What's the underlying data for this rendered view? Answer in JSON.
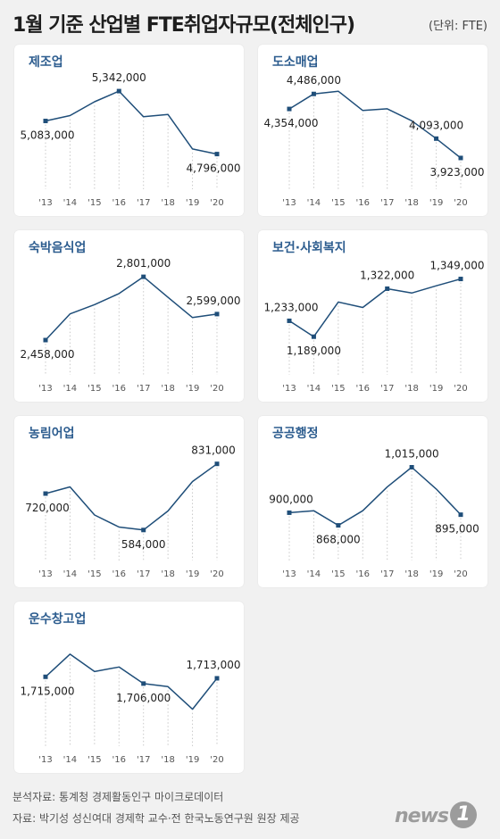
{
  "header": {
    "title": "1월 기준 산업별 FTE취업자규모(전체인구)",
    "unit": "(단위: FTE)"
  },
  "colors": {
    "line": "#1f4e79",
    "panel_title": "#2d5d8f"
  },
  "chart_data": [
    {
      "type": "line",
      "title": "제조업",
      "x": [
        "'13",
        "'14",
        "'15",
        "'16",
        "'17",
        "'18",
        "'19",
        "'20"
      ],
      "values": [
        5083000,
        5130000,
        5250000,
        5342000,
        5120000,
        5140000,
        4840000,
        4796000
      ],
      "ylim": [
        4700000,
        5420000
      ],
      "labels": [
        {
          "i": 0,
          "text": "5,083,000",
          "pos": "below"
        },
        {
          "i": 3,
          "text": "5,342,000",
          "pos": "above"
        },
        {
          "i": 7,
          "text": "4,796,000",
          "pos": "below"
        }
      ]
    },
    {
      "type": "line",
      "title": "도소매업",
      "x": [
        "'13",
        "'14",
        "'15",
        "'16",
        "'17",
        "'18",
        "'19",
        "'20"
      ],
      "values": [
        4354000,
        4486000,
        4510000,
        4340000,
        4355000,
        4250000,
        4093000,
        3923000
      ],
      "ylim": [
        3860000,
        4590000
      ],
      "labels": [
        {
          "i": 0,
          "text": "4,354,000",
          "pos": "below"
        },
        {
          "i": 1,
          "text": "4,486,000",
          "pos": "above"
        },
        {
          "i": 6,
          "text": "4,093,000",
          "pos": "above"
        },
        {
          "i": 7,
          "text": "3,923,000",
          "pos": "below"
        }
      ]
    },
    {
      "type": "line",
      "title": "숙박음식업",
      "x": [
        "'13",
        "'14",
        "'15",
        "'16",
        "'17",
        "'18",
        "'19",
        "'20"
      ],
      "values": [
        2458000,
        2600000,
        2650000,
        2710000,
        2801000,
        2690000,
        2580000,
        2599000
      ],
      "ylim": [
        2400000,
        2850000
      ],
      "labels": [
        {
          "i": 0,
          "text": "2,458,000",
          "pos": "below"
        },
        {
          "i": 4,
          "text": "2,801,000",
          "pos": "above"
        },
        {
          "i": 7,
          "text": "2,599,000",
          "pos": "above"
        }
      ]
    },
    {
      "type": "line",
      "title": "보건·사회복지",
      "x": [
        "'13",
        "'14",
        "'15",
        "'16",
        "'17",
        "'18",
        "'19",
        "'20"
      ],
      "values": [
        1233000,
        1189000,
        1285000,
        1270000,
        1322000,
        1310000,
        1330000,
        1349000
      ],
      "ylim": [
        1150000,
        1380000
      ],
      "labels": [
        {
          "i": 0,
          "text": "1,233,000",
          "pos": "above"
        },
        {
          "i": 1,
          "text": "1,189,000",
          "pos": "below"
        },
        {
          "i": 4,
          "text": "1,322,000",
          "pos": "above"
        },
        {
          "i": 7,
          "text": "1,349,000",
          "pos": "above"
        }
      ]
    },
    {
      "type": "line",
      "title": "농림어업",
      "x": [
        "'13",
        "'14",
        "'15",
        "'16",
        "'17",
        "'18",
        "'19",
        "'20"
      ],
      "values": [
        720000,
        745000,
        640000,
        595000,
        584000,
        655000,
        765000,
        831000
      ],
      "ylim": [
        560000,
        870000
      ],
      "labels": [
        {
          "i": 0,
          "text": "720,000",
          "pos": "below"
        },
        {
          "i": 4,
          "text": "584,000",
          "pos": "below"
        },
        {
          "i": 7,
          "text": "831,000",
          "pos": "above"
        }
      ]
    },
    {
      "type": "line",
      "title": "공공행정",
      "x": [
        "'13",
        "'14",
        "'15",
        "'16",
        "'17",
        "'18",
        "'19",
        "'20"
      ],
      "values": [
        900000,
        905000,
        868000,
        905000,
        965000,
        1015000,
        960000,
        895000
      ],
      "ylim": [
        840000,
        1050000
      ],
      "labels": [
        {
          "i": 0,
          "text": "900,000",
          "pos": "above"
        },
        {
          "i": 2,
          "text": "868,000",
          "pos": "below"
        },
        {
          "i": 5,
          "text": "1,015,000",
          "pos": "above"
        },
        {
          "i": 7,
          "text": "895,000",
          "pos": "below"
        }
      ]
    },
    {
      "type": "line",
      "title": "운수창고업",
      "x": [
        "'13",
        "'14",
        "'15",
        "'16",
        "'17",
        "'18",
        "'19",
        "'20"
      ],
      "values": [
        1715000,
        1745000,
        1722000,
        1728000,
        1706000,
        1702000,
        1672000,
        1713000
      ],
      "ylim": [
        1655000,
        1765000
      ],
      "labels": [
        {
          "i": 0,
          "text": "1,715,000",
          "pos": "below"
        },
        {
          "i": 4,
          "text": "1,706,000",
          "pos": "below"
        },
        {
          "i": 7,
          "text": "1,713,000",
          "pos": "above"
        }
      ]
    }
  ],
  "footer": {
    "analysis_source": "분석자료: 통계청 경제활동인구 마이크로데이터",
    "source": "자료: 박기성 성신여대 경제학 교수·전 한국노동연구원 원장 제공"
  },
  "logo": {
    "text": "news",
    "mark": "1"
  }
}
